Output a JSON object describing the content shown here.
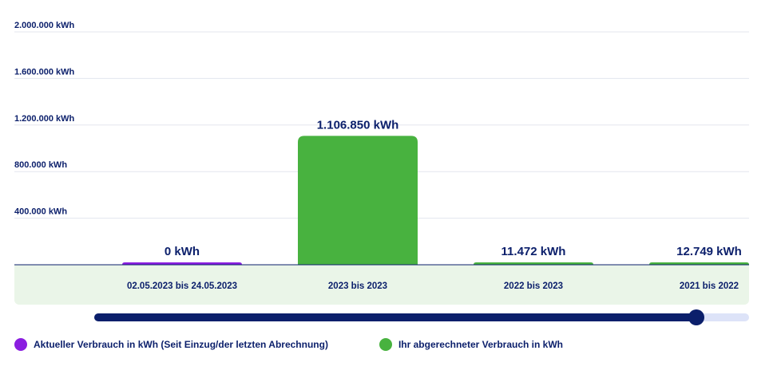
{
  "chart_data": {
    "type": "bar",
    "ylim": [
      0,
      2000000
    ],
    "y_ticks": [
      {
        "value": 400000,
        "label": "400.000 kWh"
      },
      {
        "value": 800000,
        "label": "800.000 kWh"
      },
      {
        "value": 1200000,
        "label": "1.200.000 kWh"
      },
      {
        "value": 1600000,
        "label": "1.600.000 kWh"
      },
      {
        "value": 2000000,
        "label": "2.000.000 kWh"
      }
    ],
    "categories": [
      "02.05.2023 bis 24.05.2023",
      "2023 bis 2023",
      "2022 bis 2023",
      "2021 bis 2022"
    ],
    "values": [
      0,
      1106850,
      11472,
      12749
    ],
    "value_labels": [
      "0 kWh",
      "1.106.850 kWh",
      "11.472 kWh",
      "12.749 kWh"
    ],
    "series_of_bar": [
      "current",
      "billed",
      "billed",
      "billed"
    ],
    "series": [
      {
        "key": "current",
        "name": "Aktueller Verbrauch in kWh (Seit Einzug/der letzten Abrechnung)",
        "color": "#8a1ee0"
      },
      {
        "key": "billed",
        "name": "Ihr abgerechneter Verbrauch in kWh",
        "color": "#48b23f"
      }
    ],
    "grid": true
  },
  "slider": {
    "value_percent": 92
  },
  "colors": {
    "axis": "#0b1f6b",
    "grid": "#e3e6ee",
    "category_band": "#eaf5e8",
    "text": "#0b1f6b"
  }
}
